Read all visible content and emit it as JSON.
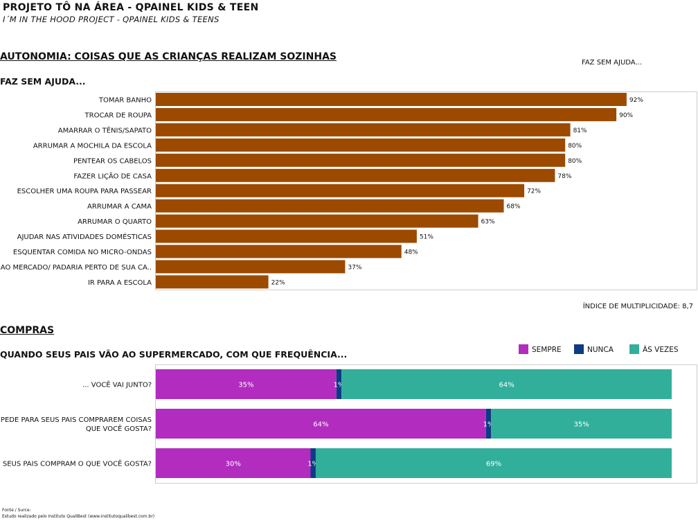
{
  "header": {
    "title": "PROJETO TÔ NA ÁREA - QPAINEL KIDS & TEEN",
    "subtitle": "I´M IN THE HOOD PROJECT  - QPAINEL KIDS & TEENS"
  },
  "section1": {
    "title": "AUTONOMIA: COISAS QUE AS CRIANÇAS REALIZAM SOZINHAS",
    "legend_label": "FAZ SEM AJUDA...",
    "chart_heading": "FAZ SEM AJUDA...",
    "footnote": "ÍNDICE DE MULTIPLICIDADE: 8,7"
  },
  "section2": {
    "title": "COMPRAS",
    "chart_heading": "QUANDO SEUS PAIS VÃO AO SUPERMERCADO, COM QUE FREQUÊNCIA..."
  },
  "source": {
    "line1": "Fonte / Surce:",
    "line2": "Estudo realizado pelo Instituto QualiBest (www.institutoqualibest.com.br)"
  },
  "colors": {
    "bar": "#9b4a00",
    "sempre": "#b22cbf",
    "nunca": "#0d3b84",
    "as_vezes": "#31af9b",
    "frame": "#cccccc"
  },
  "chart_data": [
    {
      "type": "bar",
      "orientation": "horizontal",
      "title": "FAZ SEM AJUDA...",
      "categories": [
        "TOMAR BANHO",
        "TROCAR DE ROUPA",
        "AMARRAR O TÊNIS/SAPATO",
        "ARRUMAR A MOCHILA DA ESCOLA",
        "PENTEAR OS CABELOS",
        "FAZER LIÇÃO DE CASA",
        "ESCOLHER UMA ROUPA PARA PASSEAR",
        "ARRUMAR A CAMA",
        "ARRUMAR O QUARTO",
        "AJUDAR NAS ATIVIDADES DOMÉSTICAS",
        "ESQUENTAR COMIDA NO MICRO-ONDAS",
        "IR AO MERCADO/ PADARIA PERTO DE SUA CA..",
        "IR PARA A ESCOLA"
      ],
      "values": [
        92,
        90,
        81,
        80,
        80,
        78,
        72,
        68,
        63,
        51,
        48,
        37,
        22
      ],
      "value_labels": [
        "92%",
        "90%",
        "81%",
        "80%",
        "80%",
        "78%",
        "72%",
        "68%",
        "63%",
        "51%",
        "48%",
        "37%",
        "22%"
      ],
      "xlim": [
        0,
        100
      ],
      "grid": false
    },
    {
      "type": "bar",
      "orientation": "horizontal",
      "stacked": "100%",
      "title": "QUANDO SEUS PAIS VÃO AO SUPERMERCADO, COM QUE FREQUÊNCIA...",
      "categories": [
        [
          "... VOCÊ VAI JUNTO?"
        ],
        [
          "... PEDE PARA SEUS PAIS COMPRAREM COISAS",
          "QUE VOCÊ GOSTA?"
        ],
        [
          "... SEUS PAIS COMPRAM O QUE  VOCÊ GOSTA?"
        ]
      ],
      "series": [
        {
          "name": "SEMPRE",
          "values": [
            35,
            64,
            30
          ],
          "labels": [
            "35%",
            "64%",
            "30%"
          ]
        },
        {
          "name": "NUNCA",
          "values": [
            1,
            1,
            1
          ],
          "labels": [
            "1%",
            "1%",
            "1%"
          ]
        },
        {
          "name": "ÀS VEZES",
          "values": [
            64,
            35,
            69
          ],
          "labels": [
            "64%",
            "35%",
            "69%"
          ]
        }
      ],
      "legend": "top-right",
      "xlim": [
        0,
        100
      ],
      "grid": false
    }
  ]
}
